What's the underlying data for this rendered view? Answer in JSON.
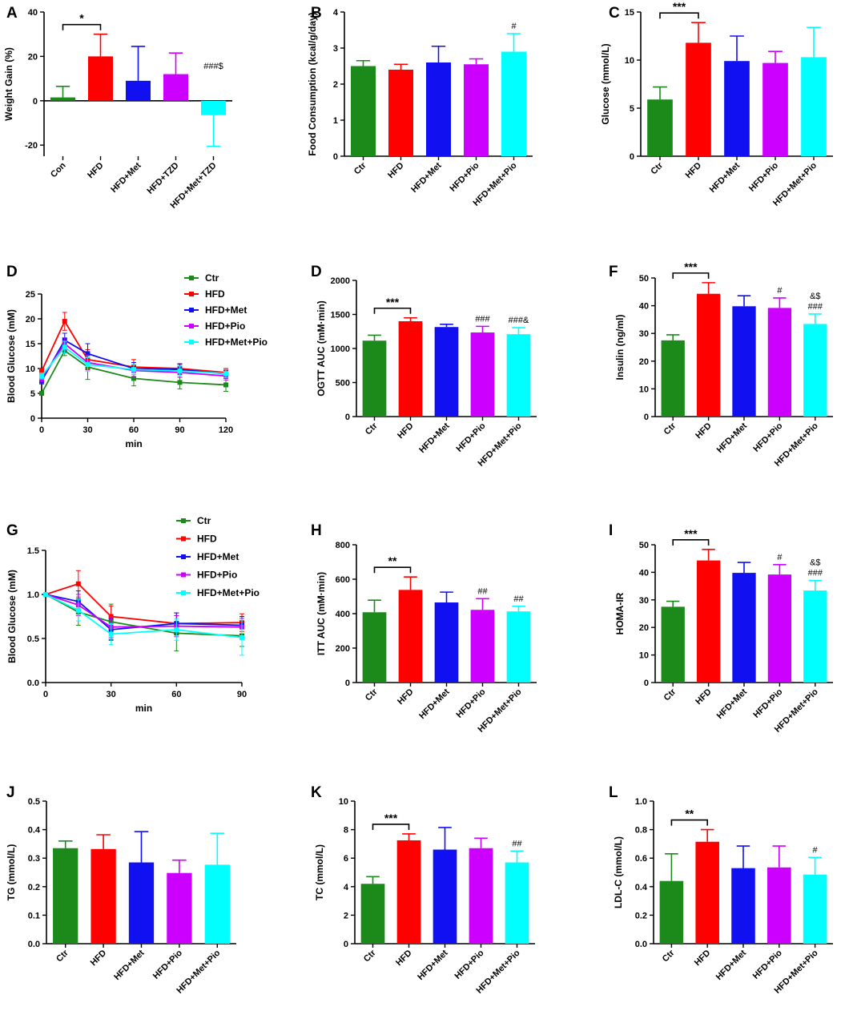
{
  "colors": {
    "Ctr": "#1b8a1b",
    "HFD": "#ff0000",
    "HFD+Met": "#1010f0",
    "HFD+Pio": "#cc00ff",
    "HFD+Met+Pio": "#00ffff"
  },
  "chart_data": [
    {
      "id": "A",
      "panel_label": "A",
      "type": "bar",
      "categories": [
        "Con",
        "HFD",
        "HFD+Met",
        "HFD+TZD",
        "HFD+Met+TZD"
      ],
      "values": [
        1.5,
        20,
        9,
        12,
        -6.5
      ],
      "errors": [
        5,
        10,
        15.5,
        9.5,
        14
      ],
      "ylabel": "Weight Gain (%)",
      "ylim": [
        -25,
        40
      ],
      "yticks": [
        -20,
        0,
        20,
        40
      ],
      "sig_brackets": [
        {
          "from": 0,
          "to": 1,
          "text": "*"
        }
      ],
      "annotations": [
        {
          "index": 4,
          "text": "###$"
        }
      ]
    },
    {
      "id": "B",
      "panel_label": "B",
      "type": "bar",
      "categories": [
        "Ctr",
        "HFD",
        "HFD+Met",
        "HFD+Pio",
        "HFD+Met+Pio"
      ],
      "values": [
        2.5,
        2.4,
        2.6,
        2.55,
        2.9
      ],
      "errors": [
        0.15,
        0.15,
        0.45,
        0.15,
        0.5
      ],
      "ylabel": "Food Consumption (kcal/g/day)",
      "ylim": [
        0,
        4
      ],
      "yticks": [
        0,
        1,
        2,
        3,
        4
      ],
      "sig_brackets": [],
      "annotations": [
        {
          "index": 4,
          "text": "#"
        }
      ]
    },
    {
      "id": "C",
      "panel_label": "C",
      "type": "bar",
      "categories": [
        "Ctr",
        "HFD",
        "HFD+Met",
        "HFD+Pio",
        "HFD+Met+Pio"
      ],
      "values": [
        5.9,
        11.8,
        9.9,
        9.7,
        10.3
      ],
      "errors": [
        1.3,
        2.1,
        2.6,
        1.2,
        3.1
      ],
      "ylabel": "Glucose (mmol/L)",
      "ylim": [
        0,
        15
      ],
      "yticks": [
        0,
        5,
        10,
        15
      ],
      "sig_brackets": [
        {
          "from": 0,
          "to": 1,
          "text": "***"
        }
      ],
      "annotations": []
    },
    {
      "id": "D_curve",
      "panel_label": "D",
      "type": "line",
      "x": [
        0,
        15,
        30,
        60,
        90,
        120
      ],
      "series": [
        {
          "name": "Ctr",
          "values": [
            5.0,
            13.6,
            10.3,
            8.0,
            7.2,
            6.7
          ],
          "errors": [
            0.4,
            1.0,
            2.5,
            1.5,
            1.3,
            1.3
          ]
        },
        {
          "name": "HFD",
          "values": [
            9.5,
            19.5,
            11.8,
            10.3,
            10.0,
            9.2
          ],
          "errors": [
            0.5,
            1.8,
            2.0,
            1.5,
            1.0,
            0.8
          ]
        },
        {
          "name": "HFD+Met",
          "values": [
            7.5,
            15.7,
            13.0,
            10.0,
            9.8,
            8.9
          ],
          "errors": [
            0.6,
            1.4,
            2.0,
            1.2,
            1.0,
            0.8
          ]
        },
        {
          "name": "HFD+Pio",
          "values": [
            8.0,
            15.0,
            11.2,
            9.6,
            9.2,
            8.5
          ],
          "errors": [
            0.6,
            1.2,
            1.5,
            1.2,
            1.0,
            0.8
          ]
        },
        {
          "name": "HFD+Met+Pio",
          "values": [
            8.5,
            14.3,
            10.8,
            9.8,
            9.5,
            9.0
          ],
          "errors": [
            0.6,
            1.2,
            1.4,
            1.0,
            1.0,
            0.8
          ]
        }
      ],
      "xlabel": "min",
      "ylabel": "Blood Glucose (mM)",
      "xlim": [
        0,
        120
      ],
      "ylim": [
        0,
        25
      ],
      "xticks": [
        0,
        30,
        60,
        90,
        120
      ],
      "yticks": [
        0,
        5,
        10,
        15,
        20,
        25
      ],
      "legend": "top-right"
    },
    {
      "id": "D_bar",
      "panel_label": "D",
      "type": "bar",
      "categories": [
        "Ctr",
        "HFD",
        "HFD+Met",
        "HFD+Pio",
        "HFD+Met+Pio"
      ],
      "values": [
        1115,
        1400,
        1315,
        1235,
        1210
      ],
      "errors": [
        80,
        50,
        40,
        90,
        95
      ],
      "ylabel": "OGTT AUC (mM·min)",
      "ylim": [
        0,
        2000
      ],
      "yticks": [
        0,
        500,
        1000,
        1500,
        2000
      ],
      "sig_brackets": [
        {
          "from": 0,
          "to": 1,
          "text": "***"
        }
      ],
      "annotations": [
        {
          "index": 3,
          "text": "###"
        },
        {
          "index": 4,
          "text": "###&"
        }
      ]
    },
    {
      "id": "F",
      "panel_label": "F",
      "type": "bar",
      "categories": [
        "Ctr",
        "HFD",
        "HFD+Met",
        "HFD+Pio",
        "HFD+Met+Pio"
      ],
      "values": [
        27.5,
        44.3,
        39.8,
        39.2,
        33.4
      ],
      "errors": [
        2.0,
        4.0,
        3.8,
        3.6,
        3.6
      ],
      "ylabel": "Insulin (ng/ml)",
      "ylim": [
        0,
        50
      ],
      "yticks": [
        0,
        10,
        20,
        30,
        40,
        50
      ],
      "sig_brackets": [
        {
          "from": 0,
          "to": 1,
          "text": "***"
        }
      ],
      "annotations": [
        {
          "index": 3,
          "text": "#"
        },
        {
          "index": 4,
          "text": "###",
          "text2": "&$"
        }
      ]
    },
    {
      "id": "G",
      "panel_label": "G",
      "type": "line",
      "x": [
        0,
        15,
        30,
        60,
        90
      ],
      "series": [
        {
          "name": "Ctr",
          "values": [
            1.0,
            0.8,
            0.69,
            0.56,
            0.53
          ],
          "errors": [
            0.0,
            0.15,
            0.2,
            0.2,
            0.12
          ]
        },
        {
          "name": "HFD",
          "values": [
            1.0,
            1.12,
            0.75,
            0.67,
            0.68
          ],
          "errors": [
            0.0,
            0.15,
            0.12,
            0.12,
            0.1
          ]
        },
        {
          "name": "HFD+Met",
          "values": [
            1.0,
            0.92,
            0.6,
            0.67,
            0.65
          ],
          "errors": [
            0.0,
            0.12,
            0.12,
            0.12,
            0.1
          ]
        },
        {
          "name": "HFD+Pio",
          "values": [
            1.0,
            0.88,
            0.63,
            0.64,
            0.63
          ],
          "errors": [
            0.0,
            0.12,
            0.12,
            0.12,
            0.1
          ]
        },
        {
          "name": "HFD+Met+Pio",
          "values": [
            1.0,
            0.82,
            0.55,
            0.6,
            0.51
          ],
          "errors": [
            0.0,
            0.12,
            0.12,
            0.12,
            0.2
          ]
        }
      ],
      "xlabel": "min",
      "ylabel": "Blood Glucose (mM)",
      "xlim": [
        0,
        90
      ],
      "ylim": [
        0,
        1.5
      ],
      "xticks": [
        0,
        30,
        60,
        90
      ],
      "yticks": [
        0.0,
        0.5,
        1.0,
        1.5
      ],
      "legend": "top-right"
    },
    {
      "id": "H",
      "panel_label": "H",
      "type": "bar",
      "categories": [
        "Ctr",
        "HFD",
        "HFD+Met",
        "HFD+Pio",
        "HFD+Met+Pio"
      ],
      "values": [
        408,
        538,
        465,
        422,
        413
      ],
      "errors": [
        70,
        75,
        60,
        65,
        30
      ],
      "ylabel": "ITT AUC (mM·min)",
      "ylim": [
        0,
        800
      ],
      "yticks": [
        0,
        200,
        400,
        600,
        800
      ],
      "sig_brackets": [
        {
          "from": 0,
          "to": 1,
          "text": "**"
        }
      ],
      "annotations": [
        {
          "index": 3,
          "text": "##"
        },
        {
          "index": 4,
          "text": "##"
        }
      ]
    },
    {
      "id": "I",
      "panel_label": "I",
      "type": "bar",
      "categories": [
        "Ctr",
        "HFD",
        "HFD+Met",
        "HFD+Pio",
        "HFD+Met+Pio"
      ],
      "values": [
        27.5,
        44.3,
        39.8,
        39.2,
        33.4
      ],
      "errors": [
        2.0,
        4.0,
        3.8,
        3.6,
        3.6
      ],
      "ylabel": "HOMA-IR",
      "ylim": [
        0,
        50
      ],
      "yticks": [
        0,
        10,
        20,
        30,
        40,
        50
      ],
      "sig_brackets": [
        {
          "from": 0,
          "to": 1,
          "text": "***"
        }
      ],
      "annotations": [
        {
          "index": 3,
          "text": "#"
        },
        {
          "index": 4,
          "text": "###",
          "text2": "&$"
        }
      ]
    },
    {
      "id": "J",
      "panel_label": "J",
      "type": "bar",
      "categories": [
        "Ctr",
        "HFD",
        "HFD+Met",
        "HFD+Pio",
        "HFD+Met+Pio"
      ],
      "values": [
        0.335,
        0.332,
        0.285,
        0.248,
        0.277
      ],
      "errors": [
        0.025,
        0.05,
        0.108,
        0.045,
        0.11
      ],
      "ylabel": "TG (mmol/L)",
      "ylim": [
        0,
        0.5
      ],
      "yticks": [
        0.0,
        0.1,
        0.2,
        0.3,
        0.4,
        0.5
      ],
      "sig_brackets": [],
      "annotations": []
    },
    {
      "id": "K",
      "panel_label": "K",
      "type": "bar",
      "categories": [
        "Ctr",
        "HFD",
        "HFD+Met",
        "HFD+Pio",
        "HFD+Met+Pio"
      ],
      "values": [
        4.2,
        7.25,
        6.6,
        6.7,
        5.7
      ],
      "errors": [
        0.5,
        0.45,
        1.55,
        0.7,
        0.8
      ],
      "ylabel": "TC (mmol/L)",
      "ylim": [
        0,
        10
      ],
      "yticks": [
        0,
        2,
        4,
        6,
        8,
        10
      ],
      "sig_brackets": [
        {
          "from": 0,
          "to": 1,
          "text": "***"
        }
      ],
      "annotations": [
        {
          "index": 4,
          "text": "##"
        }
      ]
    },
    {
      "id": "L",
      "panel_label": "L",
      "type": "bar",
      "categories": [
        "Ctr",
        "HFD",
        "HFD+Met",
        "HFD+Pio",
        "HFD+Met+Pio"
      ],
      "values": [
        0.44,
        0.715,
        0.53,
        0.535,
        0.485
      ],
      "errors": [
        0.19,
        0.085,
        0.155,
        0.15,
        0.12
      ],
      "ylabel": "LDL-C (mmol/L)",
      "ylim": [
        0,
        1.0
      ],
      "yticks": [
        0.0,
        0.2,
        0.4,
        0.6,
        0.8,
        1.0
      ],
      "sig_brackets": [
        {
          "from": 0,
          "to": 1,
          "text": "**"
        }
      ],
      "annotations": [
        {
          "index": 4,
          "text": "#"
        }
      ]
    }
  ]
}
